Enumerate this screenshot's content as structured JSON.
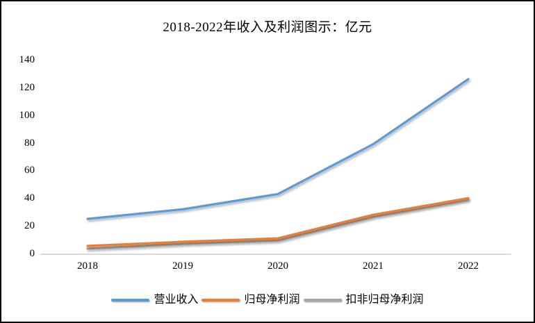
{
  "window": {
    "background": "#FFFFFF",
    "border_color": "#000000",
    "text_color": "#000000"
  },
  "chart_data": {
    "type": "line",
    "title": "2018-2022年收入及利润图示：亿元",
    "categories": [
      "2018",
      "2019",
      "2020",
      "2021",
      "2022"
    ],
    "series": [
      {
        "name": "营业收入",
        "color": "#5B9BD5",
        "values": [
          25,
          32,
          43,
          79,
          126
        ]
      },
      {
        "name": "归母净利润",
        "color": "#ED7D31",
        "values": [
          5.5,
          8.5,
          11,
          28,
          40
        ]
      },
      {
        "name": "扣非归母净利润",
        "color": "#A5A5A5",
        "values": [
          3.5,
          7,
          9.5,
          26.5,
          39
        ]
      }
    ],
    "xlabel": "",
    "ylabel": "",
    "ylim": [
      0,
      140
    ],
    "yticks": [
      0,
      20,
      40,
      60,
      80,
      100,
      120,
      140
    ],
    "grid": false,
    "legend_position": "bottom",
    "axis_line_color": "#D9D9D9"
  }
}
